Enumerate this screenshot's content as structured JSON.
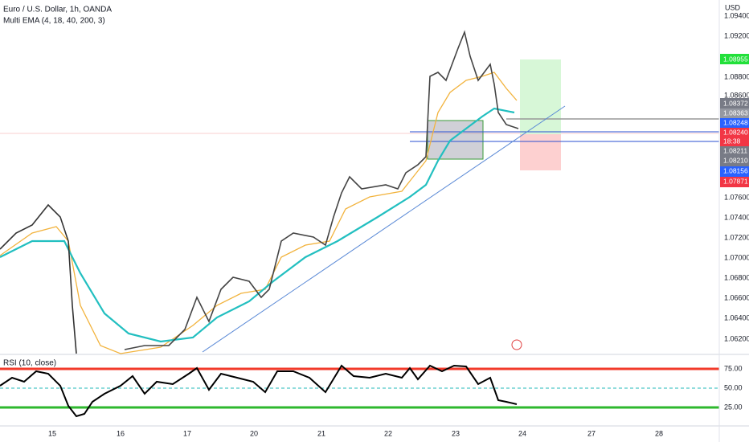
{
  "header": {
    "symbol": "Euro / U.S. Dollar, 1h, OANDA",
    "indicator": "Multi EMA (4, 18, 40, 200, 3)",
    "currency": "USD"
  },
  "price_axis": [
    "1.09400",
    "1.09200",
    "1.08800",
    "1.08600",
    "1.07600",
    "1.07400",
    "1.07200",
    "1.07000",
    "1.06800",
    "1.06600",
    "1.06400",
    "1.06200"
  ],
  "price_tags": [
    "1.08955",
    "1.08372",
    "1.08363",
    "1.08248",
    "1.08240",
    "18:38",
    "1.08211",
    "1.08210",
    "1.08156",
    "1.07871"
  ],
  "rsi": {
    "title": "RSI (10, close)",
    "levels": [
      "75.00",
      "50.00",
      "25.00"
    ]
  },
  "time_axis": [
    "15",
    "16",
    "17",
    "20",
    "21",
    "22",
    "23",
    "24",
    "27",
    "28"
  ]
}
